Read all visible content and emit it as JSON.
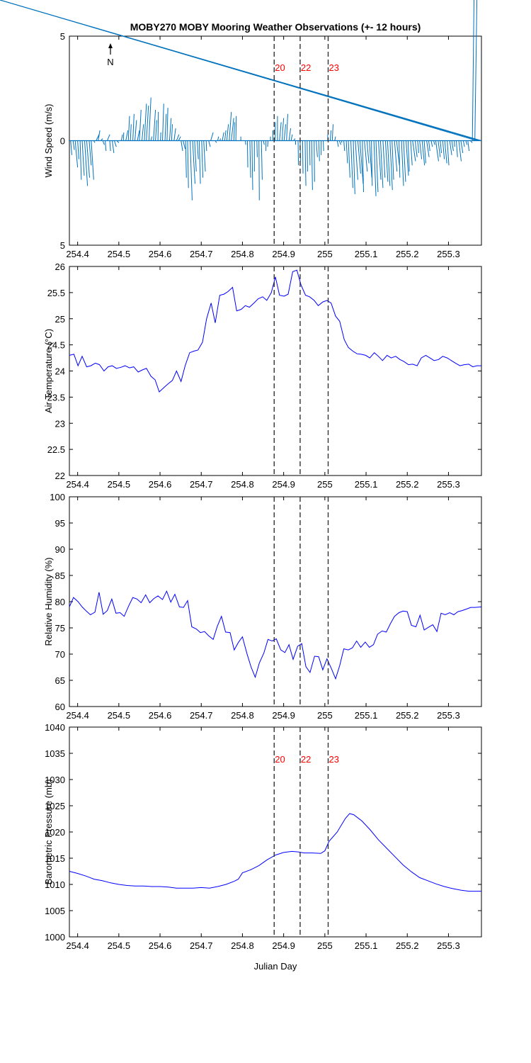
{
  "title": "MOBY270 MOBY Mooring Weather Observations (+- 12 hours)",
  "xlabel": "Julian Day",
  "north_label": "N",
  "colors": {
    "axis": "#000000",
    "vline": "#333333",
    "vline_label": "#ff0000",
    "wind": "#0072bd",
    "series": "#0000ff"
  },
  "chart_data": [
    {
      "type": "quiver",
      "ylabel": "Wind Speed (m/s)",
      "xlim": [
        254.38,
        255.38
      ],
      "ylim": [
        -5,
        5
      ],
      "xticks": [
        254.4,
        254.5,
        254.6,
        254.7,
        254.8,
        254.9,
        255,
        255.1,
        255.2,
        255.3
      ],
      "xtick_labels": [
        "254.4",
        "254.5",
        "254.6",
        "254.7",
        "254.8",
        "254.9",
        "255",
        "255.1",
        "255.2",
        "255.3"
      ],
      "yticks": [
        -5,
        0,
        5
      ],
      "ytick_labels": [
        "5",
        "0",
        "5"
      ],
      "vertical_lines": [
        254.877,
        254.94,
        255.008
      ],
      "vertical_line_labels": [
        "20",
        "22",
        "23"
      ],
      "x": [
        254.383,
        254.389,
        254.394,
        254.4,
        254.406,
        254.411,
        254.417,
        254.422,
        254.428,
        254.433,
        254.439,
        254.445,
        254.45,
        254.456,
        254.461,
        254.467,
        254.472,
        254.478,
        254.484,
        254.489,
        254.495,
        254.5,
        254.506,
        254.511,
        254.517,
        254.523,
        254.528,
        254.534,
        254.539,
        254.545,
        254.55,
        254.556,
        254.562,
        254.567,
        254.573,
        254.578,
        254.584,
        254.589,
        254.595,
        254.601,
        254.606,
        254.612,
        254.617,
        254.623,
        254.628,
        254.634,
        254.64,
        254.645,
        254.651,
        254.656,
        254.662,
        254.667,
        254.673,
        254.679,
        254.684,
        254.69,
        254.695,
        254.701,
        254.706,
        254.712,
        254.718,
        254.723,
        254.729,
        254.734,
        254.74,
        254.745,
        254.751,
        254.757,
        254.762,
        254.768,
        254.773,
        254.779,
        254.784,
        254.79,
        254.796,
        254.801,
        254.807,
        254.812,
        254.818,
        254.823,
        254.829,
        254.835,
        254.84,
        254.846,
        254.851,
        254.857,
        254.862,
        254.868,
        254.874,
        254.879,
        254.885,
        254.89,
        254.896,
        254.901,
        254.907,
        254.913,
        254.918,
        254.924,
        254.929,
        254.935,
        254.94,
        254.946,
        254.952,
        254.957,
        254.963,
        254.968,
        254.974,
        254.979,
        254.985,
        254.991,
        254.996,
        255.002,
        255.007,
        255.013,
        255.018,
        255.024,
        255.03,
        255.035,
        255.041,
        255.046,
        255.052,
        255.057,
        255.063,
        255.069,
        255.074,
        255.08,
        255.085,
        255.091,
        255.096,
        255.102,
        255.108,
        255.113,
        255.119,
        255.124,
        255.13,
        255.135,
        255.141,
        255.147,
        255.152,
        255.158,
        255.163,
        255.169,
        255.174,
        255.18,
        255.186,
        255.191,
        255.197,
        255.202,
        255.208,
        255.213,
        255.219,
        255.225,
        255.23,
        255.236,
        255.241,
        255.247,
        255.252,
        255.258,
        255.264,
        255.269,
        255.275,
        255.28,
        255.286,
        255.291,
        255.297,
        255.303,
        255.308,
        255.314,
        255.319,
        255.325,
        255.33,
        255.336,
        255.342,
        255.347,
        255.353,
        255.358,
        255.364,
        255.369,
        255.375,
        255.38
      ],
      "u": [
        0.03,
        0.03,
        0.06,
        0.03,
        0.03,
        0.05,
        0.07,
        0.07,
        0.05,
        0.06,
        0.03,
        0.07,
        0.04,
        0.05,
        0.04,
        0.02,
        0.06,
        0.02,
        0.04,
        0.05,
        0.05,
        0.04,
        0.03,
        0.01,
        0.05,
        0.03,
        0.02,
        0.03,
        0.04,
        0.05,
        0.04,
        0.04,
        0.05,
        0.05,
        0.05,
        0.02,
        0.05,
        0.03,
        0.01,
        0.01,
        0.03,
        0.03,
        0.02,
        0.04,
        0.02,
        0.04,
        0.06,
        0.05,
        0.04,
        0.05,
        0.02,
        0.02,
        0.05,
        0.06,
        0.04,
        0.03,
        0.03,
        0.03,
        0.04,
        0.01,
        0.04,
        0.06,
        0.05,
        0.03,
        0.02,
        0.02,
        0.04,
        0.03,
        0.04,
        0.05,
        0.06,
        0.02,
        0.01,
        0.02,
        0.0,
        0.01,
        0.01,
        0.01,
        0.02,
        0.02,
        0.0,
        0.01,
        0.01,
        0.02,
        0.02,
        0.0,
        -0.01,
        0.0,
        0.0,
        0.01,
        0.0,
        0.04,
        0.04,
        0.04,
        0.03,
        0.04,
        0.03,
        0.04,
        0.0,
        0.01,
        0.01,
        0.01,
        0.02,
        0.01,
        0.01,
        0.02,
        0.01,
        0.03,
        0.02,
        0.0,
        0.01,
        0.01,
        0.0,
        0.02,
        0.02,
        0.02,
        0.03,
        0.04,
        0.0,
        0.02,
        0.03,
        0.04,
        0.05,
        0.04,
        0.06,
        0.07,
        0.08,
        0.03,
        0.07,
        0.05,
        0.06,
        0.02,
        0.05,
        0.05,
        0.06,
        0.06,
        0.05,
        0.06,
        0.06,
        0.06,
        0.04,
        0.06,
        0.07,
        0.02,
        0.05,
        0.05,
        0.06,
        0.03,
        0.04,
        0.07,
        0.05,
        0.03,
        0.05,
        0.06,
        0.04,
        0.06,
        0.03,
        0.03,
        0.03,
        0.07,
        0.05,
        0.03,
        0.04,
        0.05,
        0.04,
        0.05,
        0.04,
        0.01,
        0.03,
        0.06,
        0.05,
        0.03,
        0.03,
        0.03,
        0.05,
        0.04,
        0.05
      ],
      "v": [
        -0.7,
        -0.45,
        -1.3,
        -0.9,
        -1.9,
        -1.7,
        -2.2,
        -1.8,
        -1.2,
        -1.9,
        -0.1,
        0.3,
        0.5,
        0.1,
        -0.2,
        -0.5,
        0.3,
        -0.5,
        -0.6,
        -0.3,
        -0.1,
        0.0,
        0.3,
        0.4,
        0.5,
        1.2,
        0.8,
        1.3,
        1.0,
        0.5,
        1.5,
        0.8,
        1.8,
        1.7,
        2.1,
        0.2,
        1.5,
        1.0,
        1.4,
        0.4,
        1.8,
        1.3,
        1.6,
        1.1,
        0.8,
        0.6,
        0.3,
        0.2,
        -0.5,
        -0.4,
        -1.8,
        -2.3,
        -2.9,
        -2.1,
        -1.5,
        -0.9,
        -2.1,
        -1.8,
        -1.5,
        -0.5,
        -0.3,
        0.4,
        0.0,
        -0.1,
        0.2,
        0.1,
        0.4,
        0.5,
        0.8,
        1.4,
        1.1,
        0.9,
        1.2,
        0.0,
        0.2,
        0.0,
        -0.2,
        -1.3,
        -1.8,
        -2.4,
        -1.5,
        -0.8,
        -2.9,
        -1.9,
        -0.2,
        -0.5,
        -0.3,
        0.2,
        0.5,
        0.9,
        1.2,
        0.9,
        1.1,
        0.8,
        1.3,
        0.6,
        0.3,
        0.1,
        -0.2,
        -1.2,
        -1.0,
        -1.6,
        -2.2,
        -1.5,
        -1.2,
        -2.4,
        -2.0,
        -0.8,
        -1.0,
        -0.7,
        -0.5,
        0.0,
        0.3,
        0.5,
        0.8,
        0.2,
        -0.3,
        -0.2,
        -0.1,
        -0.5,
        -1.1,
        -1.8,
        -2.3,
        -2.6,
        -1.9,
        -1.6,
        -2.1,
        -2.5,
        -1.5,
        -1.1,
        -1.8,
        -2.2,
        -2.7,
        -2.5,
        -1.9,
        -2.3,
        -1.8,
        -2.0,
        -2.2,
        -2.4,
        -1.9,
        -1.5,
        -1.2,
        -1.8,
        -2.2,
        -2.0,
        -1.7,
        -1.5,
        -1.2,
        -1.0,
        -0.8,
        -0.6,
        -0.9,
        -1.2,
        -1.1,
        -0.8,
        -0.5,
        -0.3,
        -0.2,
        -1.0,
        -0.8,
        -0.6,
        -0.9,
        -1.1,
        -1.2,
        -0.7,
        -0.5,
        -0.3,
        -0.8,
        -1.0,
        -0.6,
        -0.3,
        -0.2,
        -0.5,
        -0.1
      ]
    },
    {
      "type": "line",
      "ylabel": "Air Temperature (°C)",
      "xlim": [
        254.38,
        255.38
      ],
      "ylim": [
        22,
        26
      ],
      "xticks": [
        254.4,
        254.5,
        254.6,
        254.7,
        254.8,
        254.9,
        255,
        255.1,
        255.2,
        255.3
      ],
      "xtick_labels": [
        "254.4",
        "254.5",
        "254.6",
        "254.7",
        "254.8",
        "254.9",
        "255",
        "255.1",
        "255.2",
        "255.3"
      ],
      "yticks": [
        22,
        22.5,
        23,
        23.5,
        24,
        24.5,
        25,
        25.5,
        26
      ],
      "ytick_labels": [
        "22",
        "22.5",
        "23",
        "23.5",
        "24",
        "24.5",
        "25",
        "25.5",
        "26"
      ],
      "vertical_lines": [
        254.877,
        254.94,
        255.008
      ],
      "x": [
        254.38,
        254.391,
        254.401,
        254.411,
        254.422,
        254.432,
        254.443,
        254.453,
        254.464,
        254.474,
        254.484,
        254.494,
        254.505,
        254.515,
        254.526,
        254.536,
        254.547,
        254.557,
        254.567,
        254.578,
        254.588,
        254.598,
        254.609,
        254.619,
        254.63,
        254.64,
        254.651,
        254.661,
        254.672,
        254.682,
        254.692,
        254.703,
        254.713,
        254.724,
        254.734,
        254.745,
        254.755,
        254.765,
        254.776,
        254.786,
        254.797,
        254.807,
        254.817,
        254.828,
        254.838,
        254.849,
        254.859,
        254.87,
        254.88,
        254.89,
        254.901,
        254.911,
        254.922,
        254.932,
        254.942,
        254.953,
        254.963,
        254.974,
        254.984,
        254.995,
        255.005,
        255.015,
        255.026,
        255.036,
        255.047,
        255.057,
        255.068,
        255.078,
        255.088,
        255.099,
        255.109,
        255.12,
        255.13,
        255.14,
        255.151,
        255.161,
        255.172,
        255.182,
        255.192,
        255.203,
        255.213,
        255.224,
        255.234,
        255.245,
        255.255,
        255.265,
        255.276,
        255.286,
        255.297,
        255.307,
        255.317,
        255.328,
        255.338,
        255.349,
        255.359,
        255.369,
        255.38
      ],
      "y": [
        24.3,
        24.32,
        24.1,
        24.28,
        24.08,
        24.1,
        24.15,
        24.12,
        24.0,
        24.08,
        24.1,
        24.05,
        24.07,
        24.1,
        24.06,
        24.08,
        23.98,
        24.02,
        24.05,
        23.9,
        23.83,
        23.6,
        23.68,
        23.75,
        23.82,
        24.0,
        23.8,
        24.1,
        24.35,
        24.38,
        24.4,
        24.55,
        25.0,
        25.3,
        24.92,
        25.45,
        25.47,
        25.52,
        25.6,
        25.15,
        25.18,
        25.25,
        25.22,
        25.3,
        25.38,
        25.42,
        25.35,
        25.5,
        25.8,
        25.45,
        25.43,
        25.47,
        25.9,
        25.93,
        25.65,
        25.45,
        25.42,
        25.35,
        25.25,
        25.32,
        25.35,
        25.3,
        25.05,
        24.95,
        24.6,
        24.45,
        24.38,
        24.33,
        24.32,
        24.3,
        24.25,
        24.35,
        24.28,
        24.2,
        24.3,
        24.25,
        24.28,
        24.22,
        24.18,
        24.12,
        24.13,
        24.1,
        24.25,
        24.3,
        24.25,
        24.2,
        24.22,
        24.28,
        24.25,
        24.2,
        24.15,
        24.1,
        24.12,
        24.13,
        24.08,
        24.1,
        24.1
      ]
    },
    {
      "type": "line",
      "ylabel": "Relative Humidity (%)",
      "xlim": [
        254.38,
        255.38
      ],
      "ylim": [
        60,
        100
      ],
      "xticks": [
        254.4,
        254.5,
        254.6,
        254.7,
        254.8,
        254.9,
        255,
        255.1,
        255.2,
        255.3
      ],
      "xtick_labels": [
        "254.4",
        "254.5",
        "254.6",
        "254.7",
        "254.8",
        "254.9",
        "255",
        "255.1",
        "255.2",
        "255.3"
      ],
      "yticks": [
        60,
        65,
        70,
        75,
        80,
        85,
        90,
        95,
        100
      ],
      "ytick_labels": [
        "60",
        "65",
        "70",
        "75",
        "80",
        "85",
        "90",
        "95",
        "100"
      ],
      "vertical_lines": [
        254.877,
        254.94,
        255.008
      ],
      "x": [
        254.38,
        254.39,
        254.401,
        254.411,
        254.421,
        254.431,
        254.442,
        254.452,
        254.462,
        254.472,
        254.483,
        254.493,
        254.503,
        254.513,
        254.524,
        254.534,
        254.544,
        254.554,
        254.565,
        254.575,
        254.585,
        254.595,
        254.606,
        254.616,
        254.626,
        254.636,
        254.647,
        254.657,
        254.667,
        254.677,
        254.688,
        254.698,
        254.708,
        254.718,
        254.729,
        254.739,
        254.749,
        254.759,
        254.77,
        254.78,
        254.79,
        254.8,
        254.811,
        254.821,
        254.831,
        254.841,
        254.852,
        254.862,
        254.872,
        254.882,
        254.893,
        254.903,
        254.913,
        254.923,
        254.934,
        254.944,
        254.954,
        254.964,
        254.975,
        254.985,
        254.995,
        255.005,
        255.016,
        255.026,
        255.036,
        255.046,
        255.057,
        255.067,
        255.077,
        255.087,
        255.098,
        255.108,
        255.118,
        255.128,
        255.139,
        255.149,
        255.159,
        255.169,
        255.18,
        255.19,
        255.2,
        255.21,
        255.221,
        255.231,
        255.241,
        255.251,
        255.262,
        255.272,
        255.282,
        255.292,
        255.303,
        255.313,
        255.323,
        255.333,
        255.344,
        255.354,
        255.364,
        255.38
      ],
      "y": [
        79.0,
        80.8,
        80.0,
        79.0,
        78.2,
        77.5,
        78.0,
        81.8,
        77.6,
        78.3,
        80.5,
        77.8,
        77.9,
        77.2,
        79.2,
        80.8,
        80.5,
        79.8,
        81.3,
        79.8,
        80.6,
        81.1,
        80.4,
        82.0,
        79.9,
        81.4,
        79.0,
        78.9,
        80.2,
        75.2,
        74.8,
        74.1,
        74.3,
        73.5,
        72.8,
        75.3,
        77.2,
        74.2,
        74.1,
        70.8,
        72.2,
        73.3,
        70.1,
        67.5,
        65.6,
        68.3,
        70.2,
        72.8,
        72.5,
        72.9,
        70.8,
        70.3,
        71.8,
        69.0,
        71.5,
        72.0,
        67.6,
        66.5,
        69.6,
        69.5,
        67.0,
        69.1,
        67.2,
        65.3,
        67.8,
        71.0,
        70.8,
        71.2,
        72.5,
        71.3,
        72.3,
        71.3,
        71.8,
        73.8,
        74.4,
        74.2,
        75.8,
        77.2,
        77.9,
        78.2,
        78.1,
        75.5,
        75.2,
        77.4,
        74.6,
        75.1,
        75.6,
        74.3,
        77.8,
        77.5,
        77.9,
        77.5,
        78.1,
        78.3,
        78.6,
        78.9,
        78.9,
        79.0
      ]
    },
    {
      "type": "line",
      "ylabel": "Barometric Pressure (mb)",
      "xlabel": "Julian Day",
      "xlim": [
        254.38,
        255.38
      ],
      "ylim": [
        1000,
        1040
      ],
      "xticks": [
        254.4,
        254.5,
        254.6,
        254.7,
        254.8,
        254.9,
        255,
        255.1,
        255.2,
        255.3
      ],
      "xtick_labels": [
        "254.4",
        "254.5",
        "254.6",
        "254.7",
        "254.8",
        "254.9",
        "255",
        "255.1",
        "255.2",
        "255.3"
      ],
      "yticks": [
        1000,
        1005,
        1010,
        1015,
        1020,
        1025,
        1030,
        1035,
        1040
      ],
      "ytick_labels": [
        "1000",
        "1005",
        "1010",
        "1015",
        "1020",
        "1025",
        "1030",
        "1035",
        "1040"
      ],
      "vertical_lines": [
        254.877,
        254.94,
        255.008
      ],
      "vertical_line_labels": [
        "20",
        "22",
        "23"
      ],
      "x": [
        254.38,
        254.4,
        254.42,
        254.44,
        254.46,
        254.48,
        254.5,
        254.52,
        254.54,
        254.56,
        254.58,
        254.6,
        254.62,
        254.64,
        254.66,
        254.68,
        254.7,
        254.72,
        254.74,
        254.76,
        254.78,
        254.79,
        254.8,
        254.82,
        254.84,
        254.86,
        254.88,
        254.9,
        254.92,
        254.935,
        254.95,
        254.97,
        254.99,
        255.0,
        255.01,
        255.03,
        255.05,
        255.06,
        255.07,
        255.09,
        255.11,
        255.13,
        255.15,
        255.17,
        255.19,
        255.21,
        255.23,
        255.25,
        255.27,
        255.29,
        255.31,
        255.33,
        255.35,
        255.38
      ],
      "y": [
        1012.5,
        1012.1,
        1011.6,
        1011.0,
        1010.7,
        1010.3,
        1010.0,
        1009.8,
        1009.7,
        1009.7,
        1009.6,
        1009.6,
        1009.5,
        1009.3,
        1009.3,
        1009.3,
        1009.4,
        1009.3,
        1009.6,
        1010.0,
        1010.6,
        1011.0,
        1012.2,
        1012.8,
        1013.6,
        1014.7,
        1015.6,
        1016.1,
        1016.3,
        1016.2,
        1016.0,
        1016.0,
        1015.9,
        1016.4,
        1018.2,
        1020.0,
        1022.6,
        1023.5,
        1023.3,
        1022.1,
        1020.4,
        1018.5,
        1016.9,
        1015.3,
        1013.7,
        1012.4,
        1011.3,
        1010.7,
        1010.1,
        1009.6,
        1009.2,
        1008.9,
        1008.7,
        1008.7
      ]
    }
  ]
}
